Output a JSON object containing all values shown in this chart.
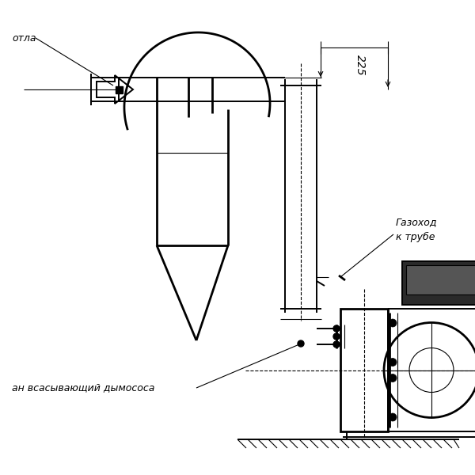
{
  "bg_color": "#ffffff",
  "line_color": "#000000",
  "label_kotla": "отла",
  "label_gazohod": "Газоход\nк трубе",
  "label_vsos": "ан всасывающий дымососа",
  "dim_225": "225",
  "figsize": [
    6.0,
    6.0
  ],
  "dpi": 100
}
